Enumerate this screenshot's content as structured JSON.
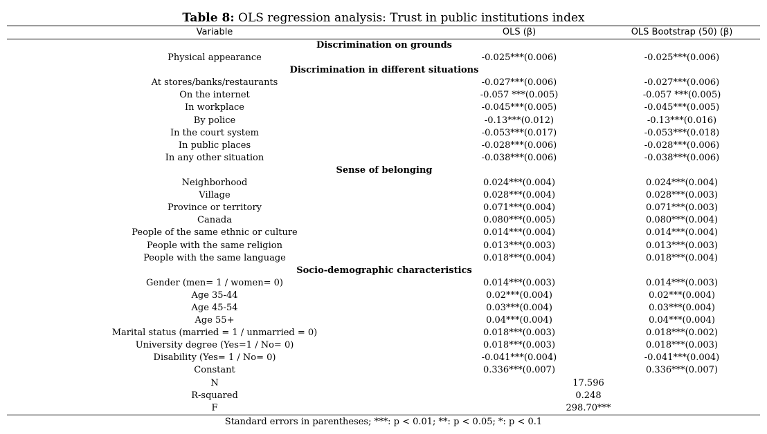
{
  "table": {
    "title_prefix": "Table 8:",
    "title_rest": " OLS regression analysis: Trust in public institutions index",
    "headers": {
      "variable": "Variable",
      "ols": "OLS (β)",
      "bootstrap": "OLS Bootstrap (50) (β)"
    },
    "rows": [
      {
        "type": "section",
        "label": "Discrimination on grounds"
      },
      {
        "type": "data",
        "label": "Physical appearance",
        "ols": "-0.025***(0.006)",
        "boot": "-0.025***(0.006)"
      },
      {
        "type": "section",
        "label": "Discrimination in different situations"
      },
      {
        "type": "data",
        "label": "At stores/banks/restaurants",
        "ols": "-0.027***(0.006)",
        "boot": "-0.027***(0.006)"
      },
      {
        "type": "data",
        "label": "On the internet",
        "ols": "-0.057 ***(0.005)",
        "boot": "-0.057 ***(0.005)"
      },
      {
        "type": "data",
        "label": "In workplace",
        "ols": "-0.045***(0.005)",
        "boot": "-0.045***(0.005)"
      },
      {
        "type": "data",
        "label": "By police",
        "ols": "-0.13***(0.012)",
        "boot": "-0.13***(0.016)"
      },
      {
        "type": "data",
        "label": "In the court system",
        "ols": "-0.053***(0.017)",
        "boot": "-0.053***(0.018)"
      },
      {
        "type": "data",
        "label": "In public places",
        "ols": "-0.028***(0.006)",
        "boot": "-0.028***(0.006)"
      },
      {
        "type": "data",
        "label": "In any other situation",
        "ols": "-0.038***(0.006)",
        "boot": "-0.038***(0.006)"
      },
      {
        "type": "section",
        "label": "Sense of belonging"
      },
      {
        "type": "data",
        "label": "Neighborhood",
        "ols": "0.024***(0.004)",
        "boot": "0.024***(0.004)"
      },
      {
        "type": "data",
        "label": "Village",
        "ols": "0.028***(0.004)",
        "boot": "0.028***(0.003)"
      },
      {
        "type": "data",
        "label": "Province or territory",
        "ols": "0.071***(0.004)",
        "boot": "0.071***(0.003)"
      },
      {
        "type": "data",
        "label": "Canada",
        "ols": "0.080***(0.005)",
        "boot": "0.080***(0.004)"
      },
      {
        "type": "data",
        "label": "People of the same ethnic or culture",
        "ols": "0.014***(0.004)",
        "boot": "0.014***(0.004)"
      },
      {
        "type": "data",
        "label": "People with the same religion",
        "ols": "0.013***(0.003)",
        "boot": "0.013***(0.003)"
      },
      {
        "type": "data",
        "label": "People with the same language",
        "ols": "0.018***(0.004)",
        "boot": "0.018***(0.004)"
      },
      {
        "type": "section",
        "label": "Socio-demographic characteristics"
      },
      {
        "type": "data",
        "label": "Gender (men= 1 / women= 0)",
        "ols": "0.014***(0.003)",
        "boot": "0.014***(0.003)"
      },
      {
        "type": "data",
        "label": "Age 35-44",
        "ols": "0.02***(0.004)",
        "boot": "0.02***(0.004)"
      },
      {
        "type": "data",
        "label": "Age 45-54",
        "ols": "0.03***(0.004)",
        "boot": "0.03***(0.004)"
      },
      {
        "type": "data",
        "label": "Age 55+",
        "ols": "0.04***(0.004)",
        "boot": "0.04***(0.004)"
      },
      {
        "type": "data",
        "label": "Marital status (married = 1 / unmarried = 0)",
        "ols": "0.018***(0.003)",
        "boot": "0.018***(0.002)"
      },
      {
        "type": "data",
        "label": "University degree (Yes=1 / No= 0)",
        "ols": "0.018***(0.003)",
        "boot": "0.018***(0.003)"
      },
      {
        "type": "data",
        "label": "Disability (Yes= 1 / No= 0)",
        "ols": "-0.041***(0.004)",
        "boot": "-0.041***(0.004)"
      },
      {
        "type": "data",
        "label": "Constant",
        "ols": "0.336***(0.007)",
        "boot": "0.336***(0.007)"
      },
      {
        "type": "stat",
        "label": "N",
        "value": "17.596"
      },
      {
        "type": "stat",
        "label": "R-squared",
        "value": "0.248"
      },
      {
        "type": "stat",
        "label": "F",
        "value": "298.70***"
      }
    ],
    "note": "Standard errors in parentheses; ***: p < 0.01; **: p < 0.05; *: p < 0.1"
  }
}
